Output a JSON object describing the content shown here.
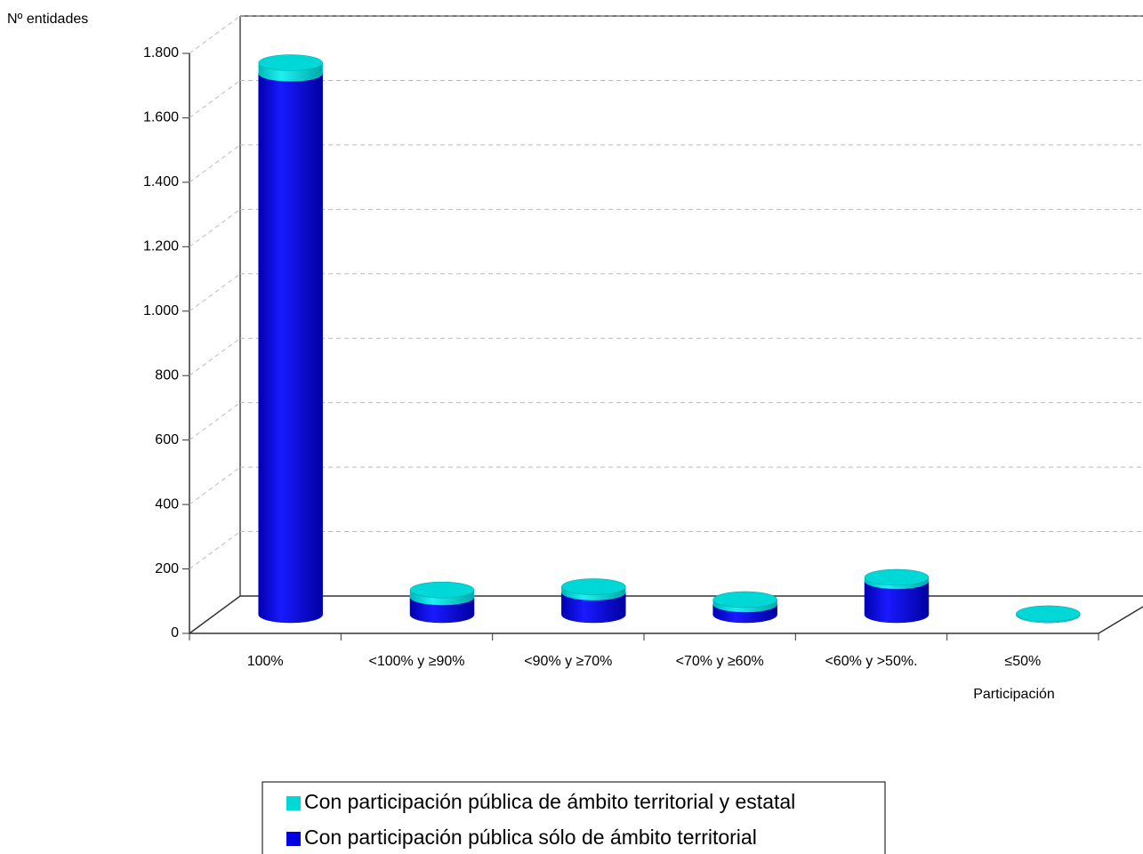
{
  "chart_data": {
    "type": "bar3d_stacked",
    "y_axis_label": "Nº entidades",
    "x_axis_label": "Participación",
    "categories": [
      "100%",
      "<100% y ≥90%",
      "<90% y ≥70%",
      "<70% y ≥60%",
      "<60% y >50%.",
      "≤50%"
    ],
    "series": [
      {
        "name": "Con participación pública sólo de ámbito territorial",
        "color": "#0000e0",
        "values": [
          1680,
          55,
          70,
          33,
          105,
          0
        ]
      },
      {
        "name": "Con participación pública de ámbito territorial y estatal",
        "color": "#00d8d8",
        "values": [
          33,
          22,
          17,
          14,
          11,
          3
        ]
      }
    ],
    "ylim": [
      0,
      1800
    ],
    "yticks": [
      0,
      200,
      400,
      600,
      800,
      {
        "value": 1000,
        "label": "1.000"
      },
      {
        "value": 1200,
        "label": "1.200"
      },
      {
        "value": 1400,
        "label": "1.400"
      },
      {
        "value": 1600,
        "label": "1.600"
      },
      {
        "value": 1800,
        "label": "1.800"
      }
    ],
    "grid": true
  }
}
